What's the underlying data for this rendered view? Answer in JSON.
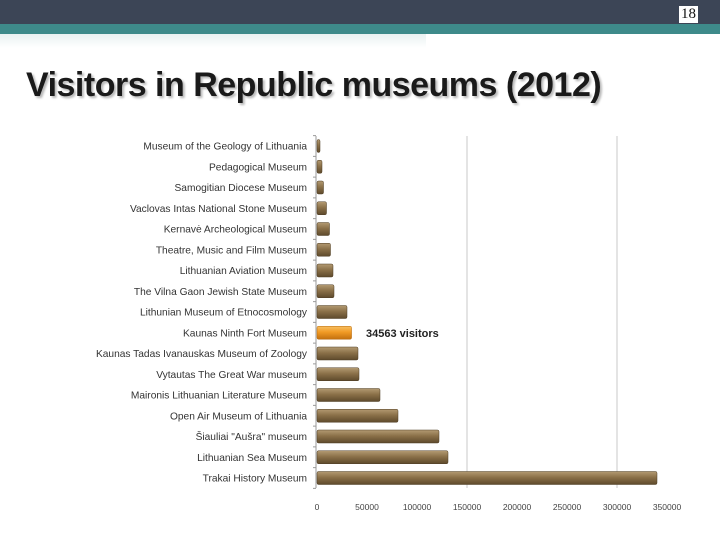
{
  "slide": {
    "number": "18",
    "title": "Visitors in Republic museums (2012)"
  },
  "colors": {
    "bar": "#8b7149",
    "highlight_bar": "#f19a24",
    "header_bar": "#3c4556",
    "accent_bar": "#3e8a8a"
  },
  "chart_data": {
    "type": "bar",
    "orientation": "horizontal",
    "title": "",
    "xlabel": "",
    "ylabel": "",
    "xlim": [
      0,
      350000
    ],
    "xticks": [
      0,
      50000,
      100000,
      150000,
      200000,
      250000,
      300000,
      350000
    ],
    "gridlines_at": [
      150000,
      300000
    ],
    "categories": [
      "Museum of the Geology of Lithuania",
      "Pedagogical Museum",
      "Samogitian Diocese Museum",
      "Vaclovas Intas National Stone Museum",
      "Kernavė Archeological Museum",
      "Theatre, Music and Film Museum",
      "Lithuanian Aviation Museum",
      "The Vilna Gaon Jewish State Museum",
      "Lithunian Museum of Etnocosmology",
      "Kaunas Ninth Fort Museum",
      "Kaunas Tadas Ivanauskas Museum of Zoology",
      "Vytautas The Great War museum",
      "Maironis Lithuanian Literature Museum",
      "Open Air Museum of Lithuania",
      "Šiauliai \"Aušra\" museum",
      "Lithuanian Sea Museum",
      "Trakai History Museum"
    ],
    "values": [
      3000,
      5000,
      6500,
      9500,
      12500,
      13500,
      16000,
      17000,
      30000,
      34563,
      41000,
      42000,
      63000,
      81000,
      122000,
      131000,
      340000
    ],
    "highlight": {
      "category": "Kaunas Ninth Fort Museum",
      "label": "34563 visitors"
    }
  }
}
